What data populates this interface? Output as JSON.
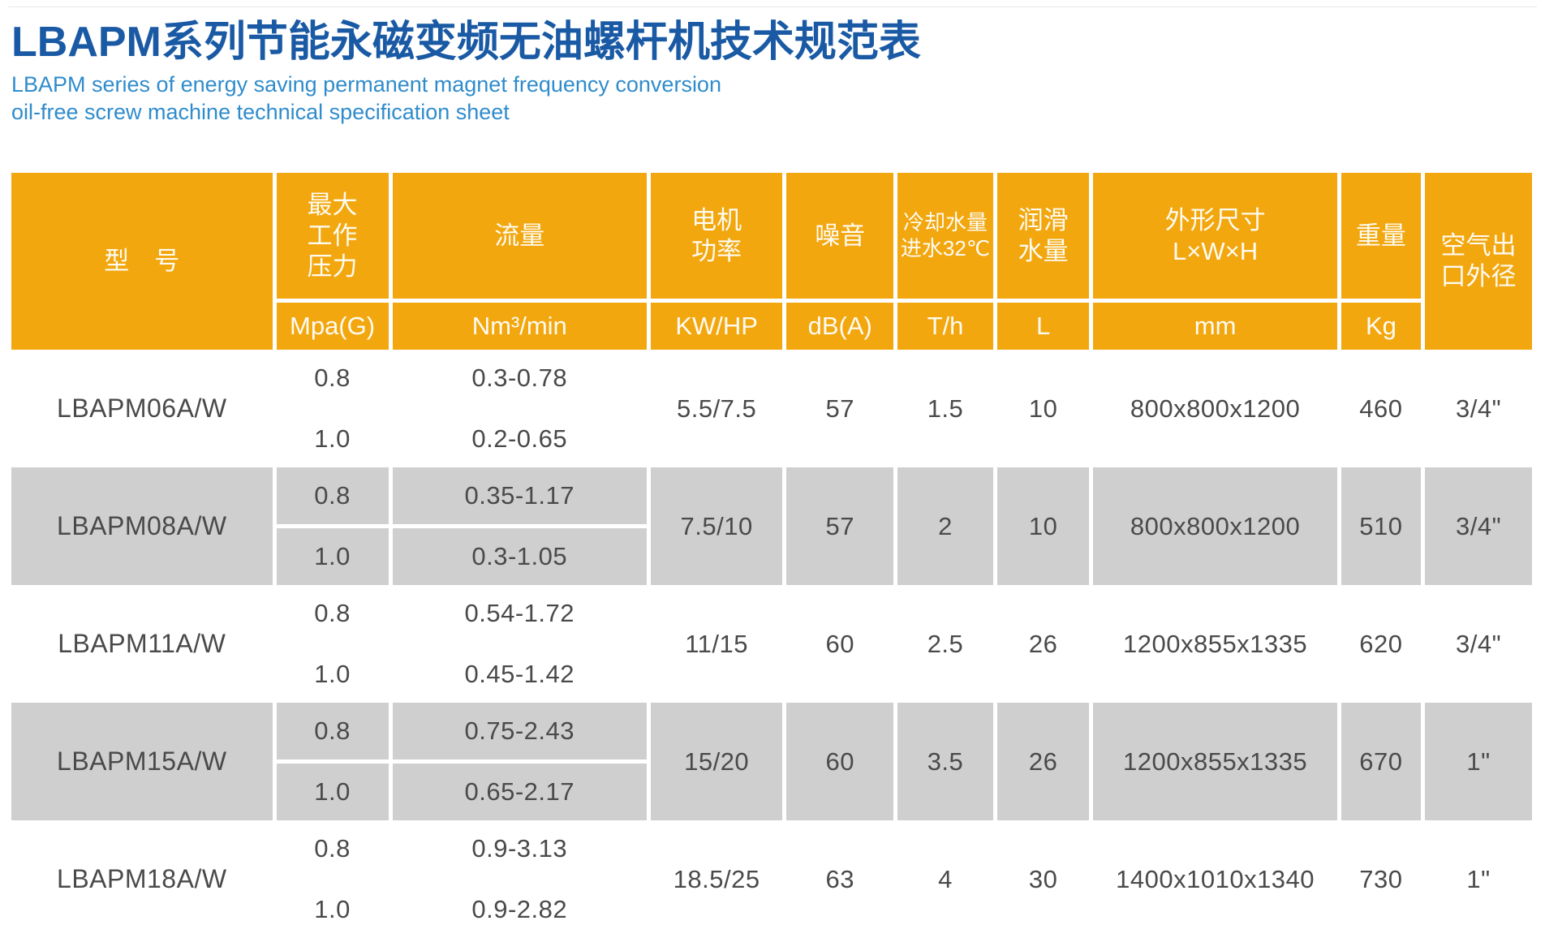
{
  "header": {
    "title": "LBAPM系列节能永磁变频无油螺杆机技术规范表",
    "subtitle_line1": "LBAPM series of energy saving permanent magnet frequency conversion",
    "subtitle_line2": "oil-free screw machine technical specification sheet"
  },
  "colors": {
    "table_header_bg": "#F2A70F",
    "alt_row_bg": "#CFCFCF",
    "title_color": "#1A5AA5",
    "subtitle_color": "#2F8CCC",
    "cell_text_color": "#4A4A4A",
    "header_text_color": "#FFFFFF"
  },
  "table": {
    "columns": [
      {
        "label": "型　号"
      },
      {
        "label": "最大\n工作\n压力",
        "unit": "Mpa(G)"
      },
      {
        "label": "流量",
        "unit": "Nm³/min"
      },
      {
        "label": "电机\n功率",
        "unit": "KW/HP"
      },
      {
        "label": "噪音",
        "unit": "dB(A)"
      },
      {
        "label": "冷却水量\n进水32℃",
        "unit": "T/h"
      },
      {
        "label": "润滑\n水量",
        "unit": "L"
      },
      {
        "label": "外形尺寸\nL×W×H",
        "unit": "mm"
      },
      {
        "label": "重量",
        "unit": "Kg"
      },
      {
        "label": "空气出\n口外径"
      }
    ],
    "rows": [
      {
        "model": "LBAPM06A/W",
        "pressures": [
          "0.8",
          "1.0"
        ],
        "flows": [
          "0.3-0.78",
          "0.2-0.65"
        ],
        "power": "5.5/7.5",
        "noise": "57",
        "cooling_water": "1.5",
        "lubricating_water": "10",
        "dimensions": "800x800x1200",
        "weight": "460",
        "outlet_diameter": "3/4\""
      },
      {
        "model": "LBAPM08A/W",
        "pressures": [
          "0.8",
          "1.0"
        ],
        "flows": [
          "0.35-1.17",
          "0.3-1.05"
        ],
        "power": "7.5/10",
        "noise": "57",
        "cooling_water": "2",
        "lubricating_water": "10",
        "dimensions": "800x800x1200",
        "weight": "510",
        "outlet_diameter": "3/4\""
      },
      {
        "model": "LBAPM11A/W",
        "pressures": [
          "0.8",
          "1.0"
        ],
        "flows": [
          "0.54-1.72",
          "0.45-1.42"
        ],
        "power": "11/15",
        "noise": "60",
        "cooling_water": "2.5",
        "lubricating_water": "26",
        "dimensions": "1200x855x1335",
        "weight": "620",
        "outlet_diameter": "3/4\""
      },
      {
        "model": "LBAPM15A/W",
        "pressures": [
          "0.8",
          "1.0"
        ],
        "flows": [
          "0.75-2.43",
          "0.65-2.17"
        ],
        "power": "15/20",
        "noise": "60",
        "cooling_water": "3.5",
        "lubricating_water": "26",
        "dimensions": "1200x855x1335",
        "weight": "670",
        "outlet_diameter": "1\""
      },
      {
        "model": "LBAPM18A/W",
        "pressures": [
          "0.8",
          "1.0"
        ],
        "flows": [
          "0.9-3.13",
          "0.9-2.82"
        ],
        "power": "18.5/25",
        "noise": "63",
        "cooling_water": "4",
        "lubricating_water": "30",
        "dimensions": "1400x1010x1340",
        "weight": "730",
        "outlet_diameter": "1\""
      }
    ]
  }
}
